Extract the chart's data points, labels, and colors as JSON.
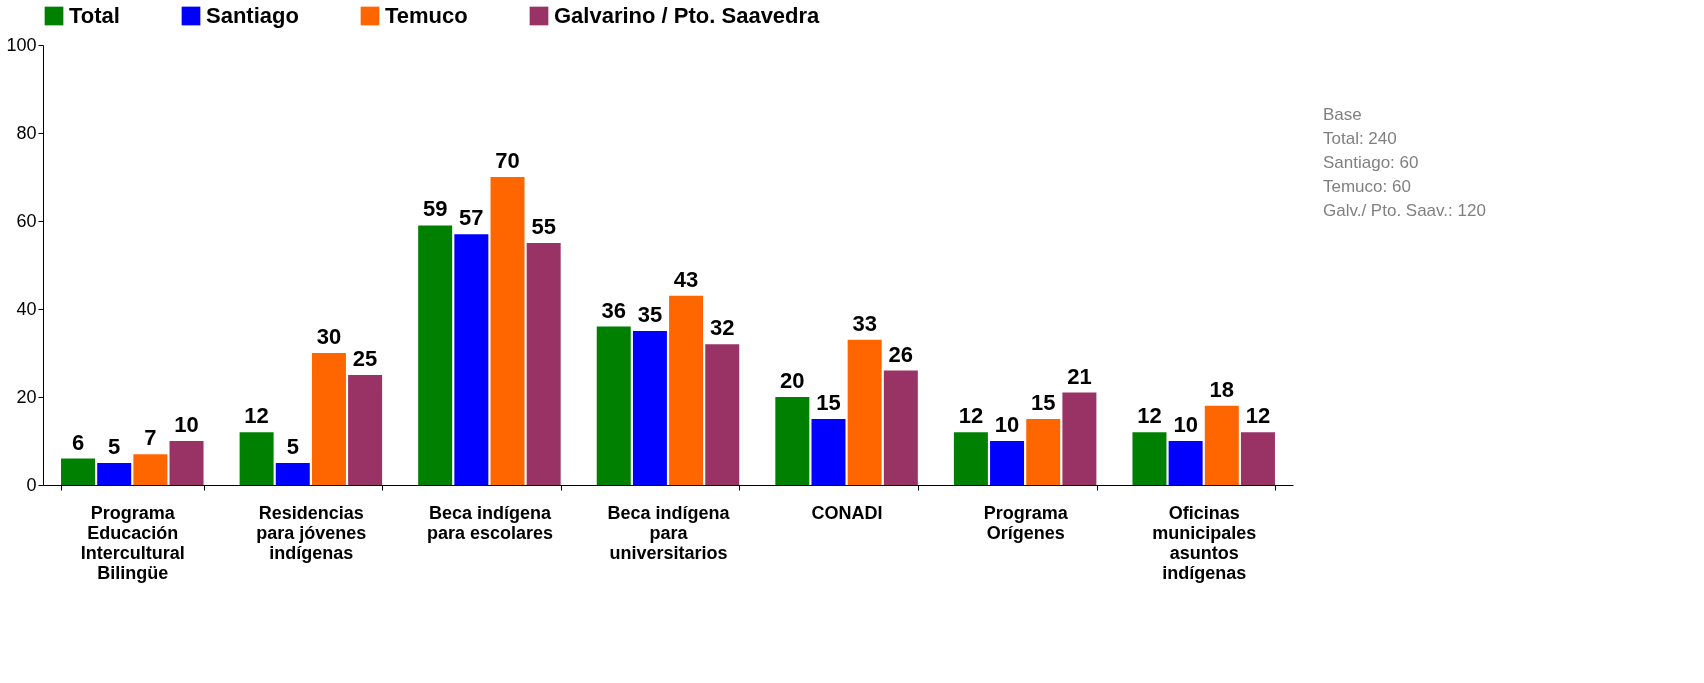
{
  "chart_data": {
    "type": "bar",
    "categories": [
      "Programa\nEducación\nIntercultural\nBilingüe",
      "Residencias\npara jóvenes\nindígenas",
      "Beca indígena\npara escolares",
      "Beca indígena\npara\nuniversitarios",
      "CONADI",
      "Programa\nOrígenes",
      "Oficinas\nmunicipales\nasuntos\nindígenas"
    ],
    "series": [
      {
        "name": "Total",
        "color": "#008000",
        "values": [
          6,
          12,
          59,
          36,
          20,
          12,
          12
        ]
      },
      {
        "name": "Santiago",
        "color": "#0000ff",
        "values": [
          5,
          5,
          57,
          35,
          15,
          10,
          10
        ]
      },
      {
        "name": "Temuco",
        "color": "#ff6600",
        "values": [
          7,
          30,
          70,
          43,
          33,
          15,
          18
        ]
      },
      {
        "name": "Galvarino / Pto. Saavedra",
        "color": "#993366",
        "values": [
          10,
          25,
          55,
          32,
          26,
          21,
          12
        ]
      }
    ],
    "ylim": [
      0,
      100
    ],
    "yticks": [
      0,
      20,
      40,
      60,
      80,
      100
    ],
    "grid": false,
    "legend": "top",
    "data_labels": true,
    "annotations": [
      "Base",
      "Total: 240",
      "Santiago: 60",
      "Temuco: 60",
      "Galv./ Pto.  Saav.: 120"
    ]
  }
}
